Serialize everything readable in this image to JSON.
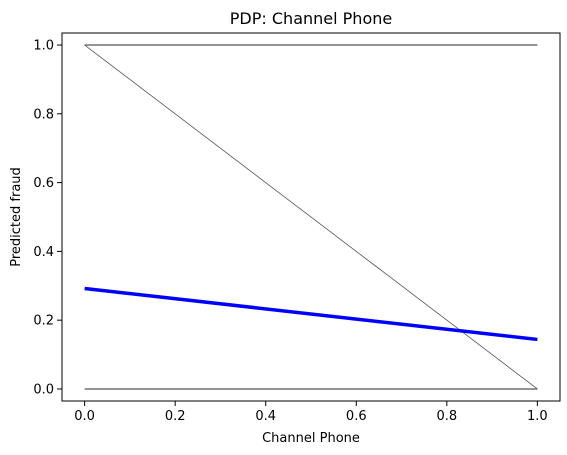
{
  "chart_data": {
    "type": "line",
    "title": "PDP: Channel Phone",
    "xlabel": "Channel Phone",
    "ylabel": "Predicted fraud",
    "xlim": [
      -0.05,
      1.05
    ],
    "ylim": [
      -0.035,
      1.035
    ],
    "x_ticks": [
      "0.0",
      "0.2",
      "0.4",
      "0.6",
      "0.8",
      "1.0"
    ],
    "y_ticks": [
      "0.0",
      "0.2",
      "0.4",
      "0.6",
      "0.8",
      "1.0"
    ],
    "grid": false,
    "legend": "none",
    "series": [
      {
        "x": [
          0,
          1
        ],
        "y": [
          1.0,
          1.0
        ],
        "color": "#555555",
        "width": 1.2
      },
      {
        "x": [
          0,
          1
        ],
        "y": [
          1.0,
          0.0
        ],
        "color": "#555555",
        "width": 0.8
      },
      {
        "x": [
          0,
          1
        ],
        "y": [
          0.0,
          0.0
        ],
        "color": "#555555",
        "width": 1.2
      },
      {
        "x": [
          0,
          1
        ],
        "y": [
          0.292,
          0.144
        ],
        "color": "#0000ff",
        "width": 3.5
      }
    ]
  }
}
